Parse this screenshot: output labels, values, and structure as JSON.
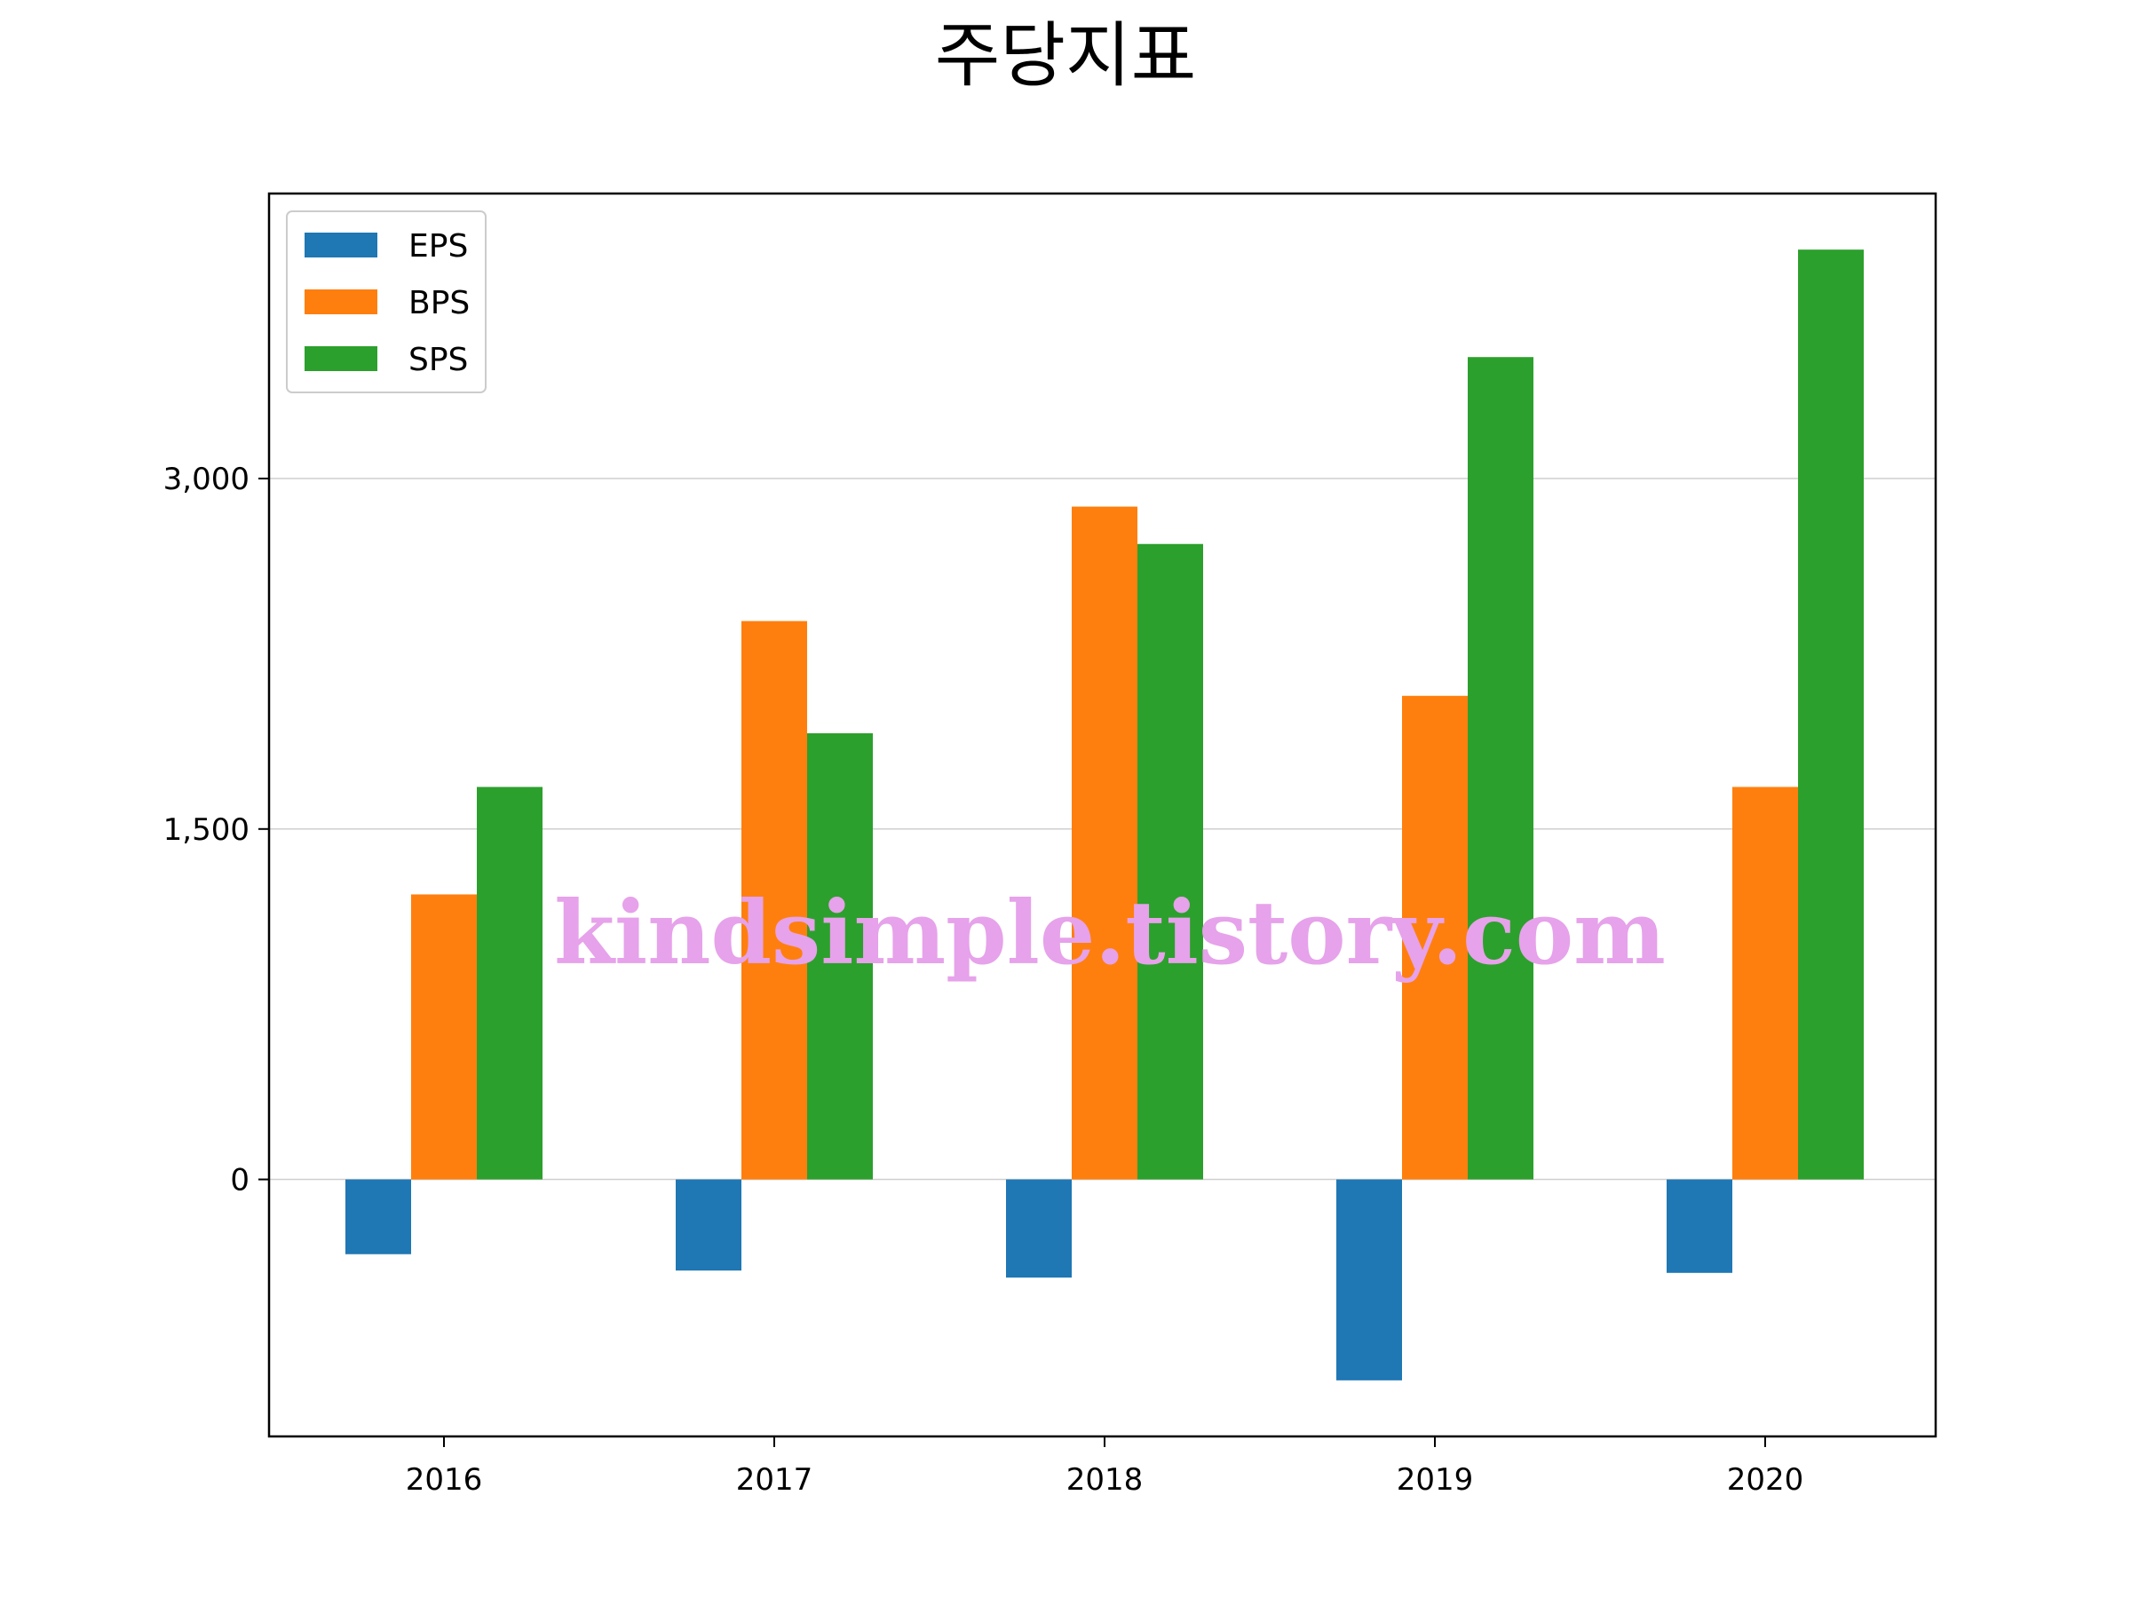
{
  "chart_data": {
    "type": "bar",
    "title": "주당지표",
    "categories": [
      "2016",
      "2017",
      "2018",
      "2019",
      "2020"
    ],
    "series": [
      {
        "name": "EPS",
        "color": "#1f77b4",
        "values": [
          -320,
          -390,
          -420,
          -860,
          -400
        ]
      },
      {
        "name": "BPS",
        "color": "#ff7f0e",
        "values": [
          1220,
          2390,
          2880,
          2070,
          1680
        ]
      },
      {
        "name": "SPS",
        "color": "#2ca02c",
        "values": [
          1680,
          1910,
          2720,
          3520,
          3980
        ]
      }
    ],
    "ylim": [
      -1100,
      4220
    ],
    "yticks": [
      0,
      1500,
      3000
    ],
    "ytick_labels": [
      "0",
      "1,500",
      "3,000"
    ],
    "grid": "y",
    "legend": "upper-left"
  },
  "watermark": "kindsimple.tistory.com"
}
